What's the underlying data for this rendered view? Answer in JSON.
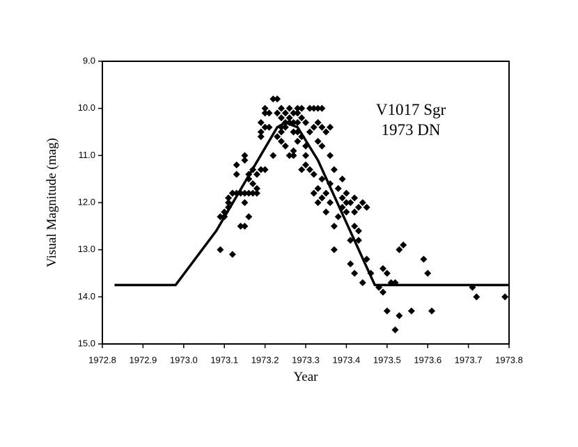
{
  "chart_data": {
    "type": "scatter",
    "x_label": "Year",
    "y_label": "Visual Magnitude (mag)",
    "annotations": [
      "V1017 Sgr",
      "1973 DN"
    ],
    "xlim": [
      1972.8,
      1973.8
    ],
    "xticks": [
      1972.8,
      1972.9,
      {
        "value": 1973,
        "label": "1973.0"
      },
      1973.1,
      1973.2,
      1973.3,
      1973.4,
      1973.5,
      1973.6,
      1973.7,
      1973.8
    ],
    "ylim": [
      9,
      15
    ],
    "y_inverted": true,
    "yticks": [
      {
        "value": 9,
        "label": "9.0"
      },
      {
        "value": 10,
        "label": "10.0"
      },
      {
        "value": 11,
        "label": "11.0"
      },
      {
        "value": 12,
        "label": "12.0"
      },
      {
        "value": 13,
        "label": "13.0"
      },
      {
        "value": 14,
        "label": "14.0"
      },
      {
        "value": 15,
        "label": "15.0"
      }
    ],
    "series": [
      {
        "type": "scatter",
        "marker": "diamond",
        "color": "#000000",
        "x": [
          1973.09,
          1973.12,
          1973.09,
          1973.1,
          1973.1,
          1973.11,
          1973.11,
          1973.11,
          1973.12,
          1973.12,
          1973.13,
          1973.13,
          1973.13,
          1973.14,
          1973.15,
          1973.14,
          1973.15,
          1973.15,
          1973.15,
          1973.15,
          1973.16,
          1973.16,
          1973.16,
          1973.16,
          1973.17,
          1973.17,
          1973.17,
          1973.18,
          1973.18,
          1973.18,
          1973.19,
          1973.19,
          1973.19,
          1973.19,
          1973.2,
          1973.2,
          1973.2,
          1973.2,
          1973.21,
          1973.21,
          1973.22,
          1973.22,
          1973.23,
          1973.23,
          1973.23,
          1973.24,
          1973.24,
          1973.24,
          1973.24,
          1973.24,
          1973.25,
          1973.25,
          1973.25,
          1973.25,
          1973.26,
          1973.26,
          1973.26,
          1973.26,
          1973.27,
          1973.27,
          1973.27,
          1973.27,
          1973.27,
          1973.28,
          1973.28,
          1973.28,
          1973.28,
          1973.28,
          1973.29,
          1973.29,
          1973.29,
          1973.29,
          1973.3,
          1973.3,
          1973.3,
          1973.3,
          1973.31,
          1973.31,
          1973.31,
          1973.32,
          1973.32,
          1973.32,
          1973.32,
          1973.33,
          1973.33,
          1973.33,
          1973.33,
          1973.33,
          1973.34,
          1973.34,
          1973.34,
          1973.34,
          1973.34,
          1973.35,
          1973.35,
          1973.35,
          1973.36,
          1973.36,
          1973.36,
          1973.36,
          1973.37,
          1973.37,
          1973.37,
          1973.38,
          1973.38,
          1973.39,
          1973.39,
          1973.39,
          1973.4,
          1973.4,
          1973.4,
          1973.41,
          1973.41,
          1973.41,
          1973.42,
          1973.42,
          1973.42,
          1973.42,
          1973.43,
          1973.43,
          1973.43,
          1973.44,
          1973.44,
          1973.45,
          1973.45,
          1973.46,
          1973.48,
          1973.49,
          1973.49,
          1973.5,
          1973.5,
          1973.51,
          1973.52,
          1973.52,
          1973.53,
          1973.53,
          1973.54,
          1973.56,
          1973.59,
          1973.6,
          1973.61,
          1973.71,
          1973.72,
          1973.79
        ],
        "values": [
          13.0,
          13.1,
          12.3,
          12.2,
          12.3,
          12.1,
          11.9,
          12.0,
          11.8,
          11.8,
          11.8,
          11.4,
          11.2,
          12.5,
          12.5,
          11.8,
          11.0,
          11.1,
          11.8,
          12.0,
          11.5,
          11.4,
          12.3,
          11.8,
          11.6,
          11.3,
          11.8,
          11.4,
          11.7,
          11.8,
          11.3,
          10.5,
          10.6,
          10.3,
          10.4,
          10.1,
          10.0,
          11.3,
          10.1,
          10.4,
          9.8,
          11.0,
          9.8,
          10.1,
          10.6,
          10.0,
          10.2,
          10.5,
          10.4,
          10.7,
          10.3,
          10.1,
          10.8,
          10.4,
          10.0,
          11.0,
          10.3,
          10.2,
          10.1,
          10.3,
          10.5,
          10.9,
          11.0,
          10.0,
          10.1,
          10.3,
          10.5,
          10.7,
          10.0,
          10.2,
          11.3,
          10.6,
          10.3,
          11.0,
          11.2,
          10.8,
          10.0,
          10.5,
          11.3,
          10.0,
          10.4,
          11.4,
          11.8,
          10.0,
          10.3,
          10.7,
          11.7,
          12.0,
          10.0,
          10.4,
          10.8,
          11.5,
          11.9,
          10.5,
          11.8,
          12.2,
          10.4,
          11.0,
          11.6,
          12.0,
          12.5,
          13.0,
          11.3,
          12.3,
          11.7,
          11.9,
          12.1,
          11.5,
          12.2,
          11.8,
          12.0,
          13.3,
          12.8,
          12.0,
          13.5,
          12.5,
          12.2,
          11.9,
          12.8,
          12.1,
          12.6,
          13.7,
          12.0,
          13.2,
          12.1,
          13.5,
          13.8,
          13.4,
          13.9,
          14.3,
          13.5,
          13.7,
          14.7,
          13.7,
          14.4,
          13.0,
          12.9,
          14.3,
          13.2,
          13.5,
          14.3,
          13.8,
          14.0,
          14.0
        ]
      },
      {
        "type": "line",
        "color": "#000000",
        "x": [
          1972.83,
          1972.98,
          1973.08,
          1973.23,
          1973.25,
          1973.28,
          1973.33,
          1973.47,
          1973.8
        ],
        "values": [
          13.75,
          13.75,
          12.6,
          10.4,
          10.3,
          10.4,
          11.1,
          13.75,
          13.75
        ]
      }
    ]
  }
}
